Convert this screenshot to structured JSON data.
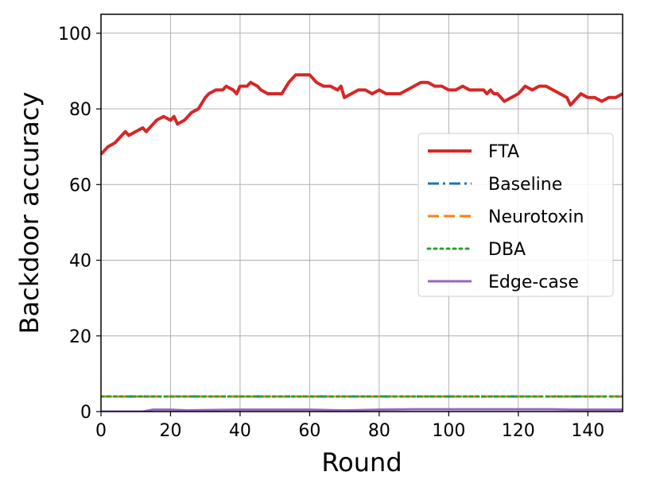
{
  "chart_data": {
    "type": "line",
    "xlabel": "Round",
    "ylabel": "Backdoor accuracy",
    "xlim": [
      0,
      150
    ],
    "ylim": [
      0,
      105
    ],
    "xticks": [
      0,
      20,
      40,
      60,
      80,
      100,
      120,
      140
    ],
    "yticks": [
      0,
      20,
      40,
      60,
      80,
      100
    ],
    "grid": true,
    "legend_position": "center-right",
    "series": [
      {
        "name": "FTA",
        "color": "#d62728",
        "style": "solid",
        "x": [
          0,
          2,
          4,
          6,
          7,
          8,
          10,
          12,
          13,
          14,
          16,
          18,
          20,
          21,
          22,
          24,
          26,
          28,
          30,
          31,
          33,
          35,
          36,
          38,
          39,
          40,
          42,
          43,
          45,
          46,
          48,
          50,
          52,
          54,
          56,
          57,
          60,
          62,
          64,
          66,
          68,
          69,
          70,
          72,
          74,
          76,
          78,
          80,
          82,
          84,
          86,
          88,
          90,
          92,
          94,
          96,
          98,
          100,
          102,
          104,
          106,
          108,
          110,
          111,
          112,
          113,
          114,
          116,
          118,
          120,
          122,
          124,
          126,
          128,
          130,
          132,
          134,
          135,
          136,
          138,
          140,
          142,
          144,
          146,
          148,
          150
        ],
        "values": [
          68,
          70,
          71,
          73,
          74,
          73,
          74,
          75,
          74,
          75,
          77,
          78,
          77,
          78,
          76,
          77,
          79,
          80,
          83,
          84,
          85,
          85,
          86,
          85,
          84,
          86,
          86,
          87,
          86,
          85,
          84,
          84,
          84,
          87,
          89,
          89,
          89,
          87,
          86,
          86,
          85,
          86,
          83,
          84,
          85,
          85,
          84,
          85,
          84,
          84,
          84,
          85,
          86,
          87,
          87,
          86,
          86,
          85,
          85,
          86,
          85,
          85,
          85,
          84,
          85,
          84,
          84,
          82,
          83,
          84,
          86,
          85,
          86,
          86,
          85,
          84,
          83,
          81,
          82,
          84,
          83,
          83,
          82,
          83,
          83,
          84
        ]
      },
      {
        "name": "Baseline",
        "color": "#1f77b4",
        "style": "dashdot",
        "x": [
          0,
          150
        ],
        "values": [
          4,
          4
        ]
      },
      {
        "name": "Neurotoxin",
        "color": "#ff7f0e",
        "style": "dashed",
        "x": [
          0,
          150
        ],
        "values": [
          4,
          4
        ]
      },
      {
        "name": "DBA",
        "color": "#2ca02c",
        "style": "dotted",
        "x": [
          0,
          150
        ],
        "values": [
          4,
          4
        ]
      },
      {
        "name": "Edge-case",
        "color": "#9467bd",
        "style": "solid",
        "x": [
          0,
          12,
          15,
          20,
          25,
          30,
          40,
          50,
          60,
          70,
          80,
          90,
          100,
          110,
          120,
          130,
          135,
          140,
          150
        ],
        "values": [
          0,
          0,
          0.5,
          0.5,
          0.3,
          0.4,
          0.5,
          0.5,
          0.5,
          0.3,
          0.5,
          0.6,
          0.6,
          0.6,
          0.6,
          0.6,
          0.5,
          0.5,
          0.5
        ]
      }
    ]
  }
}
